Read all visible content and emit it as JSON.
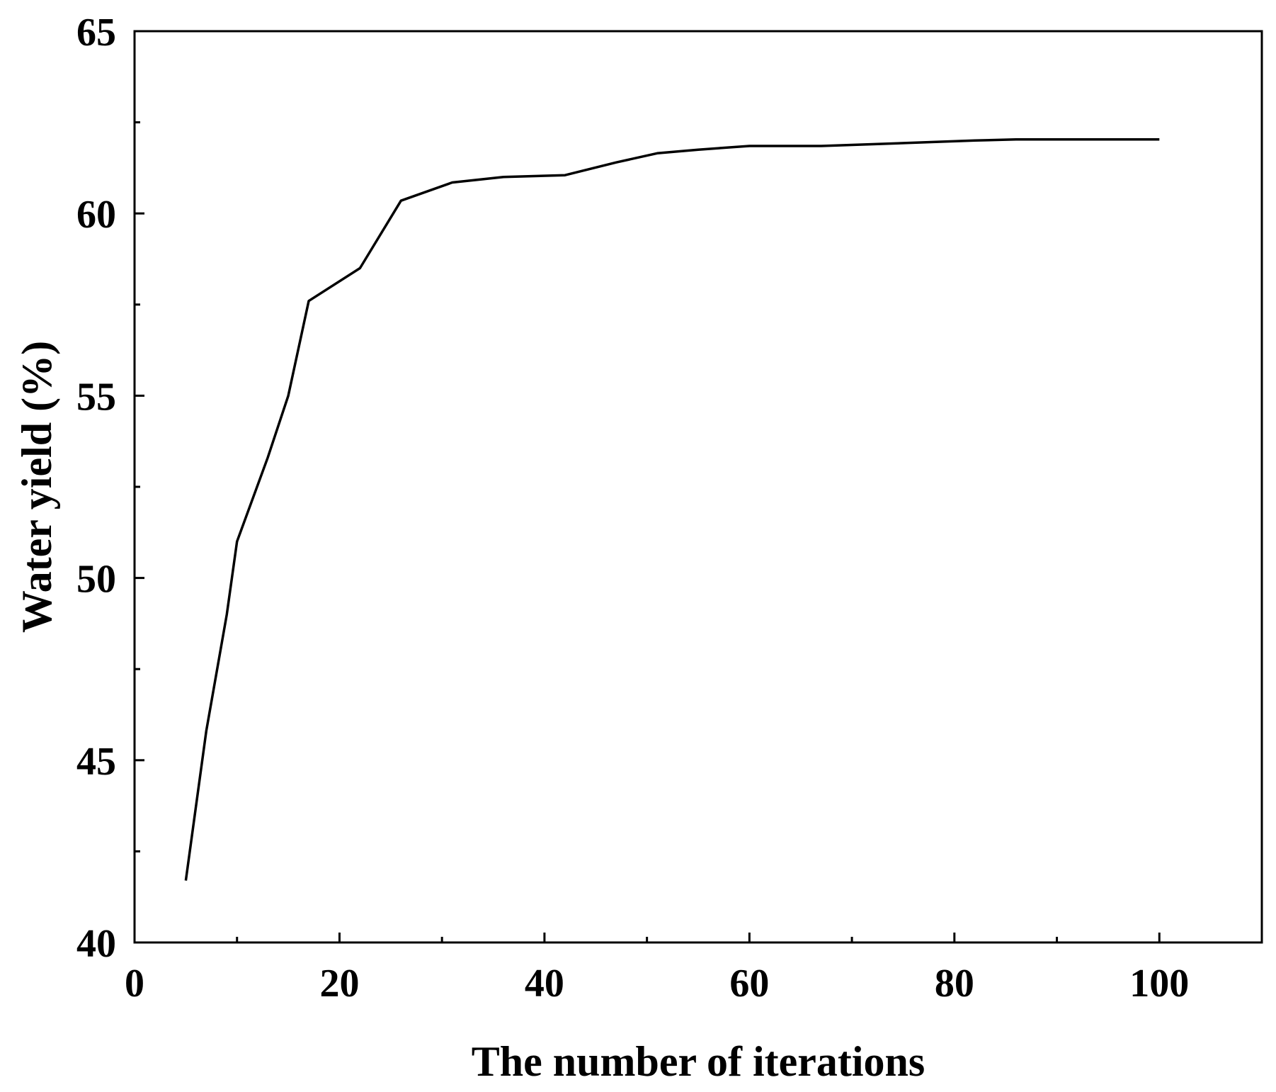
{
  "chart_data": {
    "type": "line",
    "title": "",
    "xlabel": "The number of iterations",
    "ylabel": "Water yield (%)",
    "xlim": [
      0,
      110
    ],
    "ylim": [
      40,
      65
    ],
    "x_ticks": [
      0,
      20,
      40,
      60,
      80,
      100
    ],
    "x_tick_labels": [
      "0",
      "20",
      "40",
      "60",
      "80",
      "100"
    ],
    "x_minor_ticks": [
      10,
      30,
      50,
      70,
      90
    ],
    "y_ticks": [
      40,
      45,
      50,
      55,
      60,
      65
    ],
    "y_tick_labels": [
      "40",
      "45",
      "50",
      "55",
      "60",
      "65"
    ],
    "y_minor_ticks": [
      42.5,
      47.5,
      52.5,
      57.5,
      62.5
    ],
    "grid": false,
    "legend": "none",
    "line_color": "#000000",
    "series": [
      {
        "x": [
          5,
          7,
          9,
          10,
          13,
          15,
          17,
          22,
          26,
          31,
          36,
          42,
          47,
          51,
          55,
          60,
          67,
          72,
          77,
          82,
          86,
          90,
          100
        ],
        "values": [
          41.7,
          45.8,
          49.0,
          51.0,
          53.3,
          55.0,
          57.6,
          58.5,
          60.35,
          60.85,
          61.0,
          61.05,
          61.4,
          61.65,
          61.75,
          61.85,
          61.85,
          61.9,
          61.95,
          62.0,
          62.03,
          62.03,
          62.03
        ]
      }
    ]
  }
}
